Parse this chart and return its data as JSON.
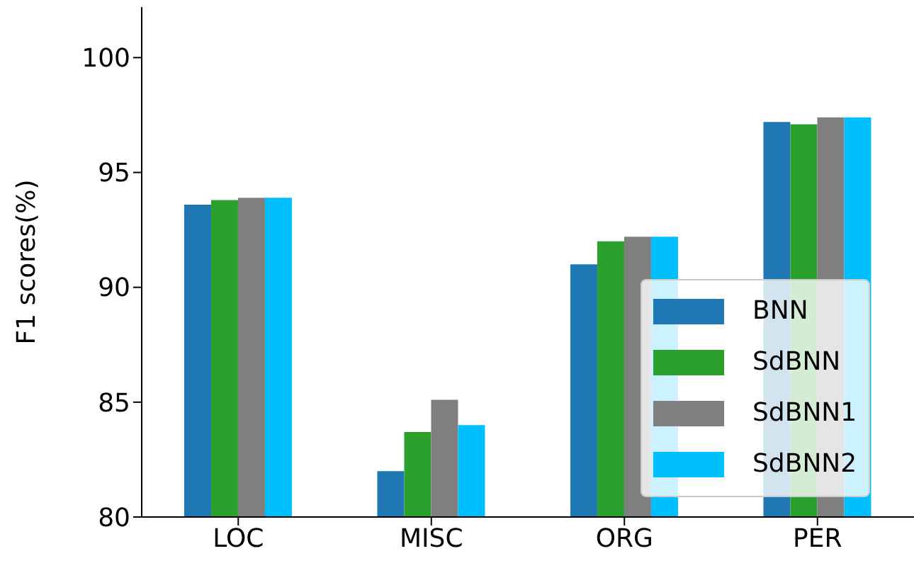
{
  "chart_data": {
    "type": "bar",
    "ylabel": "F1 scores(%)",
    "categories": [
      "LOC",
      "MISC",
      "ORG",
      "PER"
    ],
    "series": [
      {
        "name": "BNN",
        "color": "#1f77b4",
        "values": [
          93.6,
          82.0,
          91.0,
          97.2
        ]
      },
      {
        "name": "SdBNN",
        "color": "#2ca02c",
        "values": [
          93.8,
          83.7,
          92.0,
          97.1
        ]
      },
      {
        "name": "SdBNN1",
        "color": "#7f7f7f",
        "values": [
          93.9,
          85.1,
          92.2,
          97.4
        ]
      },
      {
        "name": "SdBNN2",
        "color": "#00bfff",
        "values": [
          93.9,
          84.0,
          92.2,
          97.4
        ]
      }
    ],
    "ylim": [
      80,
      102.2
    ],
    "yticks": [
      80,
      85,
      90,
      95,
      100
    ],
    "grid": false,
    "legend": "bottom right"
  }
}
